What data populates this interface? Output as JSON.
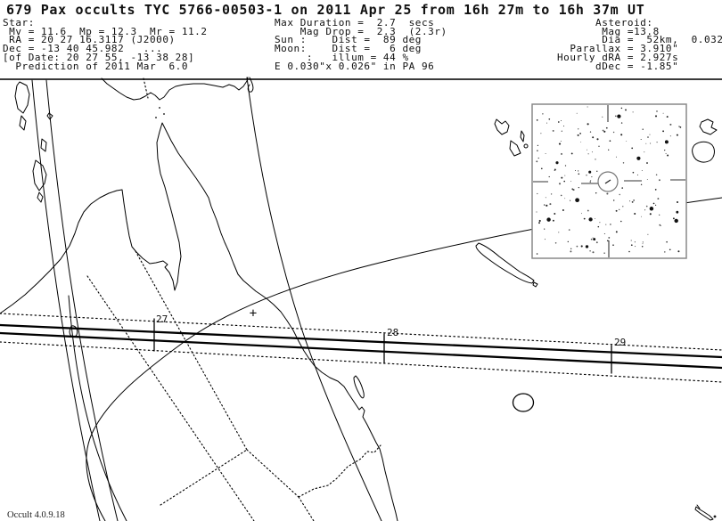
{
  "window": {
    "title": "679 Pax occults TYC 5766-00503-1 on 2011 Apr 25 from 16h 27m to 16h 37m UT"
  },
  "header": {
    "star_block": "Star:\n Mv = 11.6  Mp = 12.3  Mr = 11.2\n RA = 20 27 16.3117 (J2000)\nDec = -13 40 45.982   ...\n[of Date: 20 27 55, -13 38 28]\n  Prediction of 2011 Mar  6.0",
    "event_block": "Max Duration =  2.7  secs\n    Mag Drop =  2.3  (2.3r)\nSun :    Dist =  89 deg\nMoon:    Dist =   6 deg\n     :   illum = 44 %\nE 0.030\"x 0.026\" in PA 96",
    "asteroid_block": "      Asteroid:\n       Mag =13.8\n       Dia =  52km,  0.032\"\n  Parallax = 3.910\"\nHourly dRA = 2.927s\n      dDec = -1.85\""
  },
  "map": {
    "time_tick_labels": [
      "27",
      "28",
      "29"
    ],
    "plus_marker": "+",
    "credit": "Occult 4.0.9.18"
  },
  "inset": {
    "seed": 20110425,
    "faint_star_count": 185,
    "bright_star_count": 13
  },
  "colors": {
    "ink": "#111111",
    "map_line": "#000000",
    "separator": "#3a3a3a",
    "inset_border": "#888888"
  }
}
